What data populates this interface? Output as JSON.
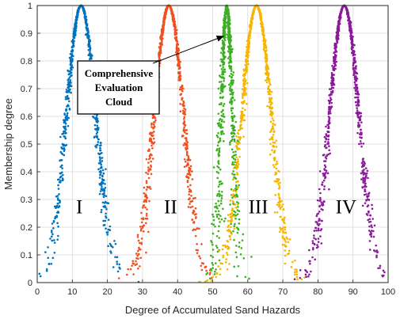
{
  "chart_data": {
    "type": "scatter",
    "title": "",
    "xlabel": "Degree of Accumulated Sand Hazards",
    "ylabel": "Membership degree",
    "xlim": [
      0,
      100
    ],
    "ylim": [
      0,
      1
    ],
    "xticks": [
      "0",
      "10",
      "20",
      "30",
      "40",
      "50",
      "60",
      "70",
      "80",
      "90",
      "100"
    ],
    "yticks": [
      "0",
      "0.1",
      "0.2",
      "0.3",
      "0.4",
      "0.5",
      "0.6",
      "0.7",
      "0.8",
      "0.9",
      "1"
    ],
    "grid": true,
    "clouds": [
      {
        "label": "I",
        "expectation": 12.5,
        "entropy": 4.2,
        "hyper_entropy": 0.35,
        "color": "#0072BD",
        "drops": 900,
        "label_x": 12,
        "label_y": 0.25
      },
      {
        "label": "II",
        "expectation": 37.5,
        "entropy": 4.2,
        "hyper_entropy": 0.35,
        "color": "#F0501E",
        "drops": 900,
        "label_x": 38,
        "label_y": 0.25
      },
      {
        "label": "",
        "expectation": 54.0,
        "entropy": 1.6,
        "hyper_entropy": 0.45,
        "color": "#3CB022",
        "drops": 800,
        "label_x": null,
        "label_y": null
      },
      {
        "label": "III",
        "expectation": 62.5,
        "entropy": 4.2,
        "hyper_entropy": 0.35,
        "color": "#F7B500",
        "drops": 900,
        "label_x": 63,
        "label_y": 0.25
      },
      {
        "label": "IV",
        "expectation": 87.5,
        "entropy": 4.2,
        "hyper_entropy": 0.35,
        "color": "#8B1A9B",
        "drops": 900,
        "label_x": 88,
        "label_y": 0.25
      }
    ],
    "annotation": {
      "lines": [
        "Comprehensive",
        "Evaluation",
        "Cloud"
      ],
      "arrow_to": [
        53.2,
        0.89
      ]
    }
  }
}
